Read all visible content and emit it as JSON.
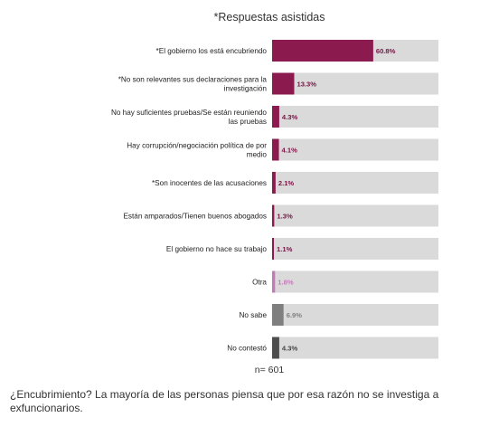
{
  "chart_data": {
    "type": "bar",
    "orientation": "horizontal",
    "title": "*Respuestas asistidas",
    "categories": [
      [
        "*El gobierno los está encubriendo"
      ],
      [
        "*No son relevantes sus declaraciones para la",
        "investigación"
      ],
      [
        "No hay suficientes pruebas/Se están reuniendo",
        "las pruebas"
      ],
      [
        "Hay corrupción/negociación política de por",
        "medio"
      ],
      [
        "*Son inocentes de las acusaciones"
      ],
      [
        "Están amparados/Tienen buenos abogados"
      ],
      [
        "El gobierno no hace su trabajo"
      ],
      [
        "Otra"
      ],
      [
        "No sabe"
      ],
      [
        "No contestó"
      ]
    ],
    "values": [
      60.8,
      13.3,
      4.3,
      4.1,
      2.1,
      1.3,
      1.1,
      1.8,
      6.9,
      4.3
    ],
    "value_labels": [
      "60.8%",
      "13.3%",
      "4.3%",
      "4.1%",
      "2.1%",
      "1.3%",
      "1.1%",
      "1.8%",
      "6.9%",
      "4.3%"
    ],
    "bar_colors": [
      "#8b1a4f",
      "#8b1a4f",
      "#8b1a4f",
      "#8b1a4f",
      "#8b1a4f",
      "#8b1a4f",
      "#8b1a4f",
      "#c57ab8",
      "#7f7f7f",
      "#4d4d4d"
    ],
    "label_colors": [
      "#7a1245",
      "#7a1245",
      "#7a1245",
      "#7a1245",
      "#7a1245",
      "#7a1245",
      "#7a1245",
      "#c57ab8",
      "#808080",
      "#444444"
    ],
    "track_color": "#dadada",
    "xlim": [
      0,
      100
    ],
    "note": "n= 601"
  },
  "caption": "¿Encubrimiento? La mayoría de las personas piensa que por esa razón no se investiga a exfuncionarios."
}
